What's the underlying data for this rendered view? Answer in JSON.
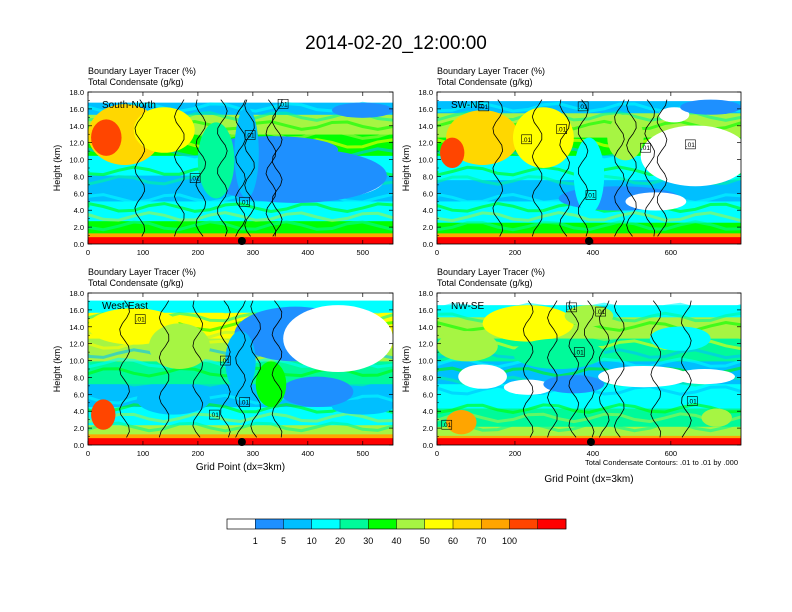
{
  "figure": {
    "title": "2014-02-20_12:00:00",
    "contour_note": "Total Condensate Contours: .01 to .01 by .000"
  },
  "colorbar": {
    "colors": [
      "#ffffff",
      "#1e90ff",
      "#00bfff",
      "#00ffff",
      "#00fa9a",
      "#00ff00",
      "#a6f543",
      "#ffff00",
      "#ffd700",
      "#ffa500",
      "#ff4500",
      "#ff0000"
    ],
    "labels": [
      "1",
      "5",
      "10",
      "20",
      "30",
      "40",
      "50",
      "60",
      "70",
      "100"
    ]
  },
  "chart_data": [
    {
      "type": "heatmap",
      "label": "South-North",
      "title_line1": "Boundary Layer Tracer    (%)",
      "title_line2": "Total Condensate    (g/kg)",
      "ylabel": "Height (km)",
      "xlabel": "",
      "xlim": [
        0,
        555
      ],
      "ylim": [
        0,
        18
      ],
      "xticks": [
        "0",
        "100",
        "200",
        "300",
        "400",
        "500"
      ],
      "xtick_values": [
        0,
        100,
        200,
        300,
        400,
        500
      ],
      "yticks": [
        "0.0",
        "2.0",
        "4.0",
        "6.0",
        "8.0",
        "10.0",
        "12.0",
        "14.0",
        "16.0",
        "18.0"
      ],
      "marker_x": 280,
      "contour_labels": [
        ".01",
        ".01",
        ".01",
        ".01"
      ],
      "contour_label_pos": [
        [
          355,
          16.6
        ],
        [
          295,
          12.9
        ],
        [
          195,
          7.8
        ],
        [
          285,
          5
        ]
      ]
    },
    {
      "type": "heatmap",
      "label": "SW-NE",
      "title_line1": "Boundary Layer Tracer    (%)",
      "title_line2": "Total Condensate    (g/kg)",
      "ylabel": "Height (km)",
      "xlabel": "",
      "xlim": [
        0,
        780
      ],
      "ylim": [
        0,
        18
      ],
      "xticks": [
        "0",
        "200",
        "400",
        "600"
      ],
      "xtick_values": [
        0,
        200,
        400,
        600
      ],
      "yticks": [
        "0.0",
        "2.0",
        "4.0",
        "6.0",
        "8.0",
        "10.0",
        "12.0",
        "14.0",
        "16.0",
        "18.0"
      ],
      "marker_x": 390,
      "contour_labels": [
        ".01",
        ".01",
        ".01",
        ".01",
        ".01",
        ".01",
        ".01"
      ],
      "contour_label_pos": [
        [
          120,
          16.3
        ],
        [
          375,
          16.3
        ],
        [
          230,
          12.4
        ],
        [
          320,
          13.6
        ],
        [
          535,
          11.4
        ],
        [
          650,
          11.8
        ],
        [
          395,
          5.8
        ]
      ]
    },
    {
      "type": "heatmap",
      "label": "West-East",
      "title_line1": "Boundary Layer Tracer    (%)",
      "title_line2": "Total Condensate    (g/kg)",
      "ylabel": "Height (km)",
      "xlabel": "Grid Point (dx=3km)",
      "xlim": [
        0,
        555
      ],
      "ylim": [
        0,
        18
      ],
      "xticks": [
        "0",
        "100",
        "200",
        "300",
        "400",
        "500"
      ],
      "xtick_values": [
        0,
        100,
        200,
        300,
        400,
        500
      ],
      "yticks": [
        "0.0",
        "2.0",
        "4.0",
        "6.0",
        "8.0",
        "10.0",
        "12.0",
        "14.0",
        "16.0",
        "18.0"
      ],
      "marker_x": 280,
      "contour_labels": [
        ".01",
        ".01",
        ".01",
        ".01"
      ],
      "contour_label_pos": [
        [
          95,
          14.9
        ],
        [
          250,
          10
        ],
        [
          285,
          5.1
        ],
        [
          230,
          3.6
        ]
      ]
    },
    {
      "type": "heatmap",
      "label": "NW-SE",
      "title_line1": "Boundary Layer Tracer    (%)",
      "title_line2": "Total Condensate    (g/kg)",
      "ylabel": "Height (km)",
      "xlabel": "Grid Point (dx=3km)",
      "xlim": [
        0,
        780
      ],
      "ylim": [
        0,
        18
      ],
      "xticks": [
        "0",
        "200",
        "400",
        "600"
      ],
      "xtick_values": [
        0,
        200,
        400,
        600
      ],
      "yticks": [
        "0.0",
        "2.0",
        "4.0",
        "6.0",
        "8.0",
        "10.0",
        "12.0",
        "14.0",
        "16.0",
        "18.0"
      ],
      "marker_x": 395,
      "contour_labels": [
        ".01",
        ".01",
        ".01",
        ".01",
        ".01"
      ],
      "contour_label_pos": [
        [
          345,
          16.3
        ],
        [
          420,
          15.8
        ],
        [
          365,
          11
        ],
        [
          655,
          5.2
        ],
        [
          25,
          2.4
        ]
      ]
    }
  ]
}
